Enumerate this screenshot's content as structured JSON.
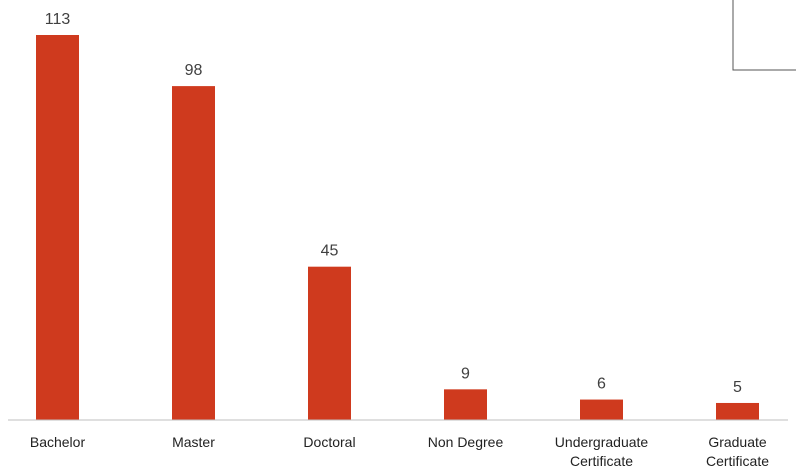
{
  "chart_data": {
    "type": "bar",
    "title": "",
    "xlabel": "",
    "ylabel": "",
    "categories": [
      [
        "Bachelor"
      ],
      [
        "Master"
      ],
      [
        "Doctoral"
      ],
      [
        "Non Degree"
      ],
      [
        "Undergraduate",
        "Certificate"
      ],
      [
        "Graduate",
        "Certificate"
      ]
    ],
    "values": [
      113,
      98,
      45,
      9,
      6,
      5
    ],
    "ylim": [
      0,
      113
    ],
    "grid": false,
    "legend": "none",
    "colors": {
      "bar": "#CF3A1E",
      "axis": "#BFBFBF",
      "legend_box": "#555555"
    }
  }
}
